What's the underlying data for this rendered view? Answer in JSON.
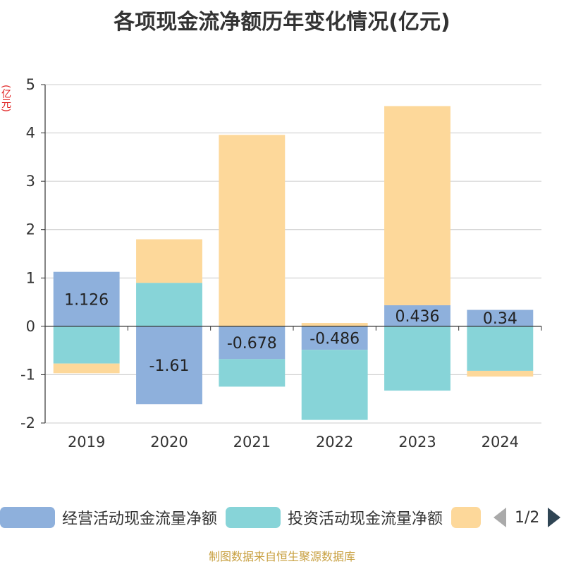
{
  "title": "各项现金流净额历年变化情况(亿元)",
  "unit_label": "(亿元)",
  "source": "制图数据来自恒生聚源数据库",
  "pager": {
    "text": "1/2"
  },
  "colors": {
    "operating": "#8eb0dc",
    "investing": "#87d4d8",
    "financing": "#fdd89a",
    "axis": "#333333",
    "grid": "#cccccc"
  },
  "chart_data": {
    "type": "bar",
    "stacked": true,
    "categories": [
      "2019",
      "2020",
      "2021",
      "2022",
      "2023",
      "2024"
    ],
    "ylim": [
      -2,
      5
    ],
    "yticks": [
      5,
      4,
      3,
      2,
      1,
      0,
      -1,
      -2
    ],
    "grid": true,
    "legend_position": "bottom",
    "series": [
      {
        "name": "经营活动现金流量净额",
        "key": "operating",
        "values": [
          1.126,
          -1.61,
          -0.678,
          -0.486,
          0.436,
          0.34
        ],
        "labels": [
          "1.126",
          "-1.61",
          "-0.678",
          "-0.486",
          "0.436",
          "0.34"
        ]
      },
      {
        "name": "投资活动现金流量净额",
        "key": "investing",
        "values": [
          -0.77,
          0.9,
          -0.57,
          -1.45,
          -1.33,
          -0.92
        ],
        "labels": []
      },
      {
        "name": "",
        "key": "financing",
        "values": [
          -0.2,
          0.9,
          3.96,
          0.07,
          4.12,
          -0.12
        ],
        "labels": []
      }
    ]
  }
}
